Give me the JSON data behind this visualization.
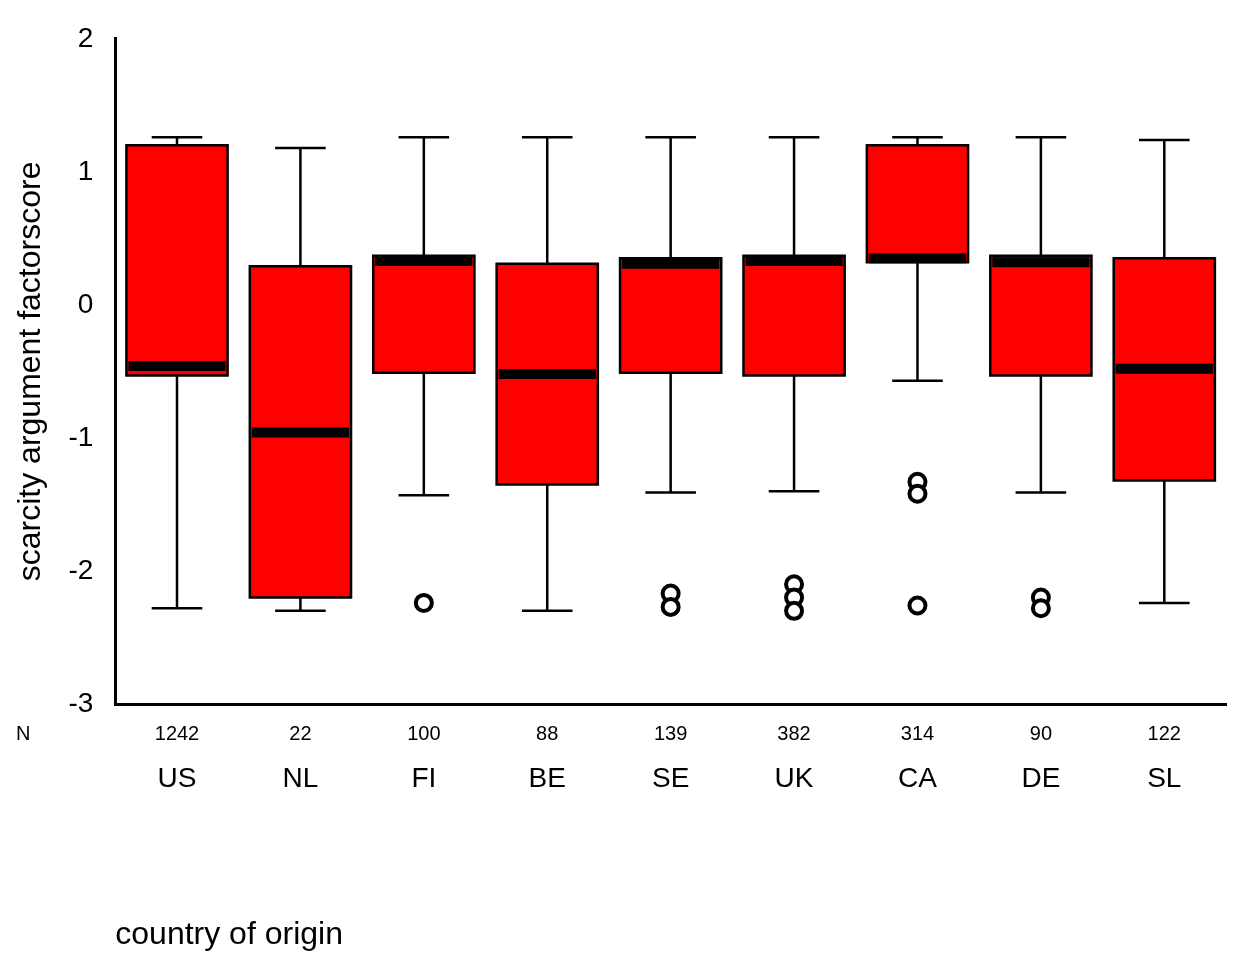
{
  "chart_data": {
    "type": "box",
    "xlabel": "country of origin",
    "ylabel": "scarcity argument factorscore",
    "categories": [
      "US",
      "NL",
      "FI",
      "BE",
      "SE",
      "UK",
      "CA",
      "DE",
      "SL"
    ],
    "color": "#ff0000",
    "boxes": [
      {
        "low": -2.28,
        "q1": -0.53,
        "median": -0.46,
        "q3": 1.2,
        "high": 1.26
      },
      {
        "low": -2.3,
        "q1": -2.2,
        "median": -0.96,
        "q3": 0.29,
        "high": 1.18
      },
      {
        "low": -1.43,
        "q1": -0.51,
        "median": 0.33,
        "q3": 0.37,
        "high": 1.26,
        "outliers": [
          -2.24
        ]
      },
      {
        "low": -2.3,
        "q1": -1.35,
        "median": -0.52,
        "q3": 0.31,
        "high": 1.26
      },
      {
        "low": -1.41,
        "q1": -0.51,
        "median": 0.31,
        "q3": 0.35,
        "high": 1.26,
        "outliers": [
          -2.17,
          -2.27
        ]
      },
      {
        "low": -1.4,
        "q1": -0.53,
        "median": 0.33,
        "q3": 0.37,
        "high": 1.26,
        "outliers": [
          -2.1,
          -2.2,
          -2.3
        ]
      },
      {
        "low": -0.57,
        "q1": 0.32,
        "median": 0.35,
        "q3": 1.2,
        "high": 1.26,
        "outliers": [
          -1.33,
          -1.42,
          -2.26
        ]
      },
      {
        "low": -1.41,
        "q1": -0.53,
        "median": 0.32,
        "q3": 0.37,
        "high": 1.26,
        "outliers": [
          -2.2,
          -2.28
        ]
      },
      {
        "low": -2.24,
        "q1": -1.32,
        "median": -0.48,
        "q3": 0.35,
        "high": 1.24
      }
    ],
    "ylim": [
      -3,
      2
    ],
    "yticks": [
      -3,
      -2,
      -1,
      0,
      1,
      2
    ],
    "grid": false,
    "legend": false,
    "annotations": [
      "N",
      "1242",
      "22",
      "100",
      "88",
      "139",
      "382",
      "314",
      "90",
      "122"
    ]
  }
}
